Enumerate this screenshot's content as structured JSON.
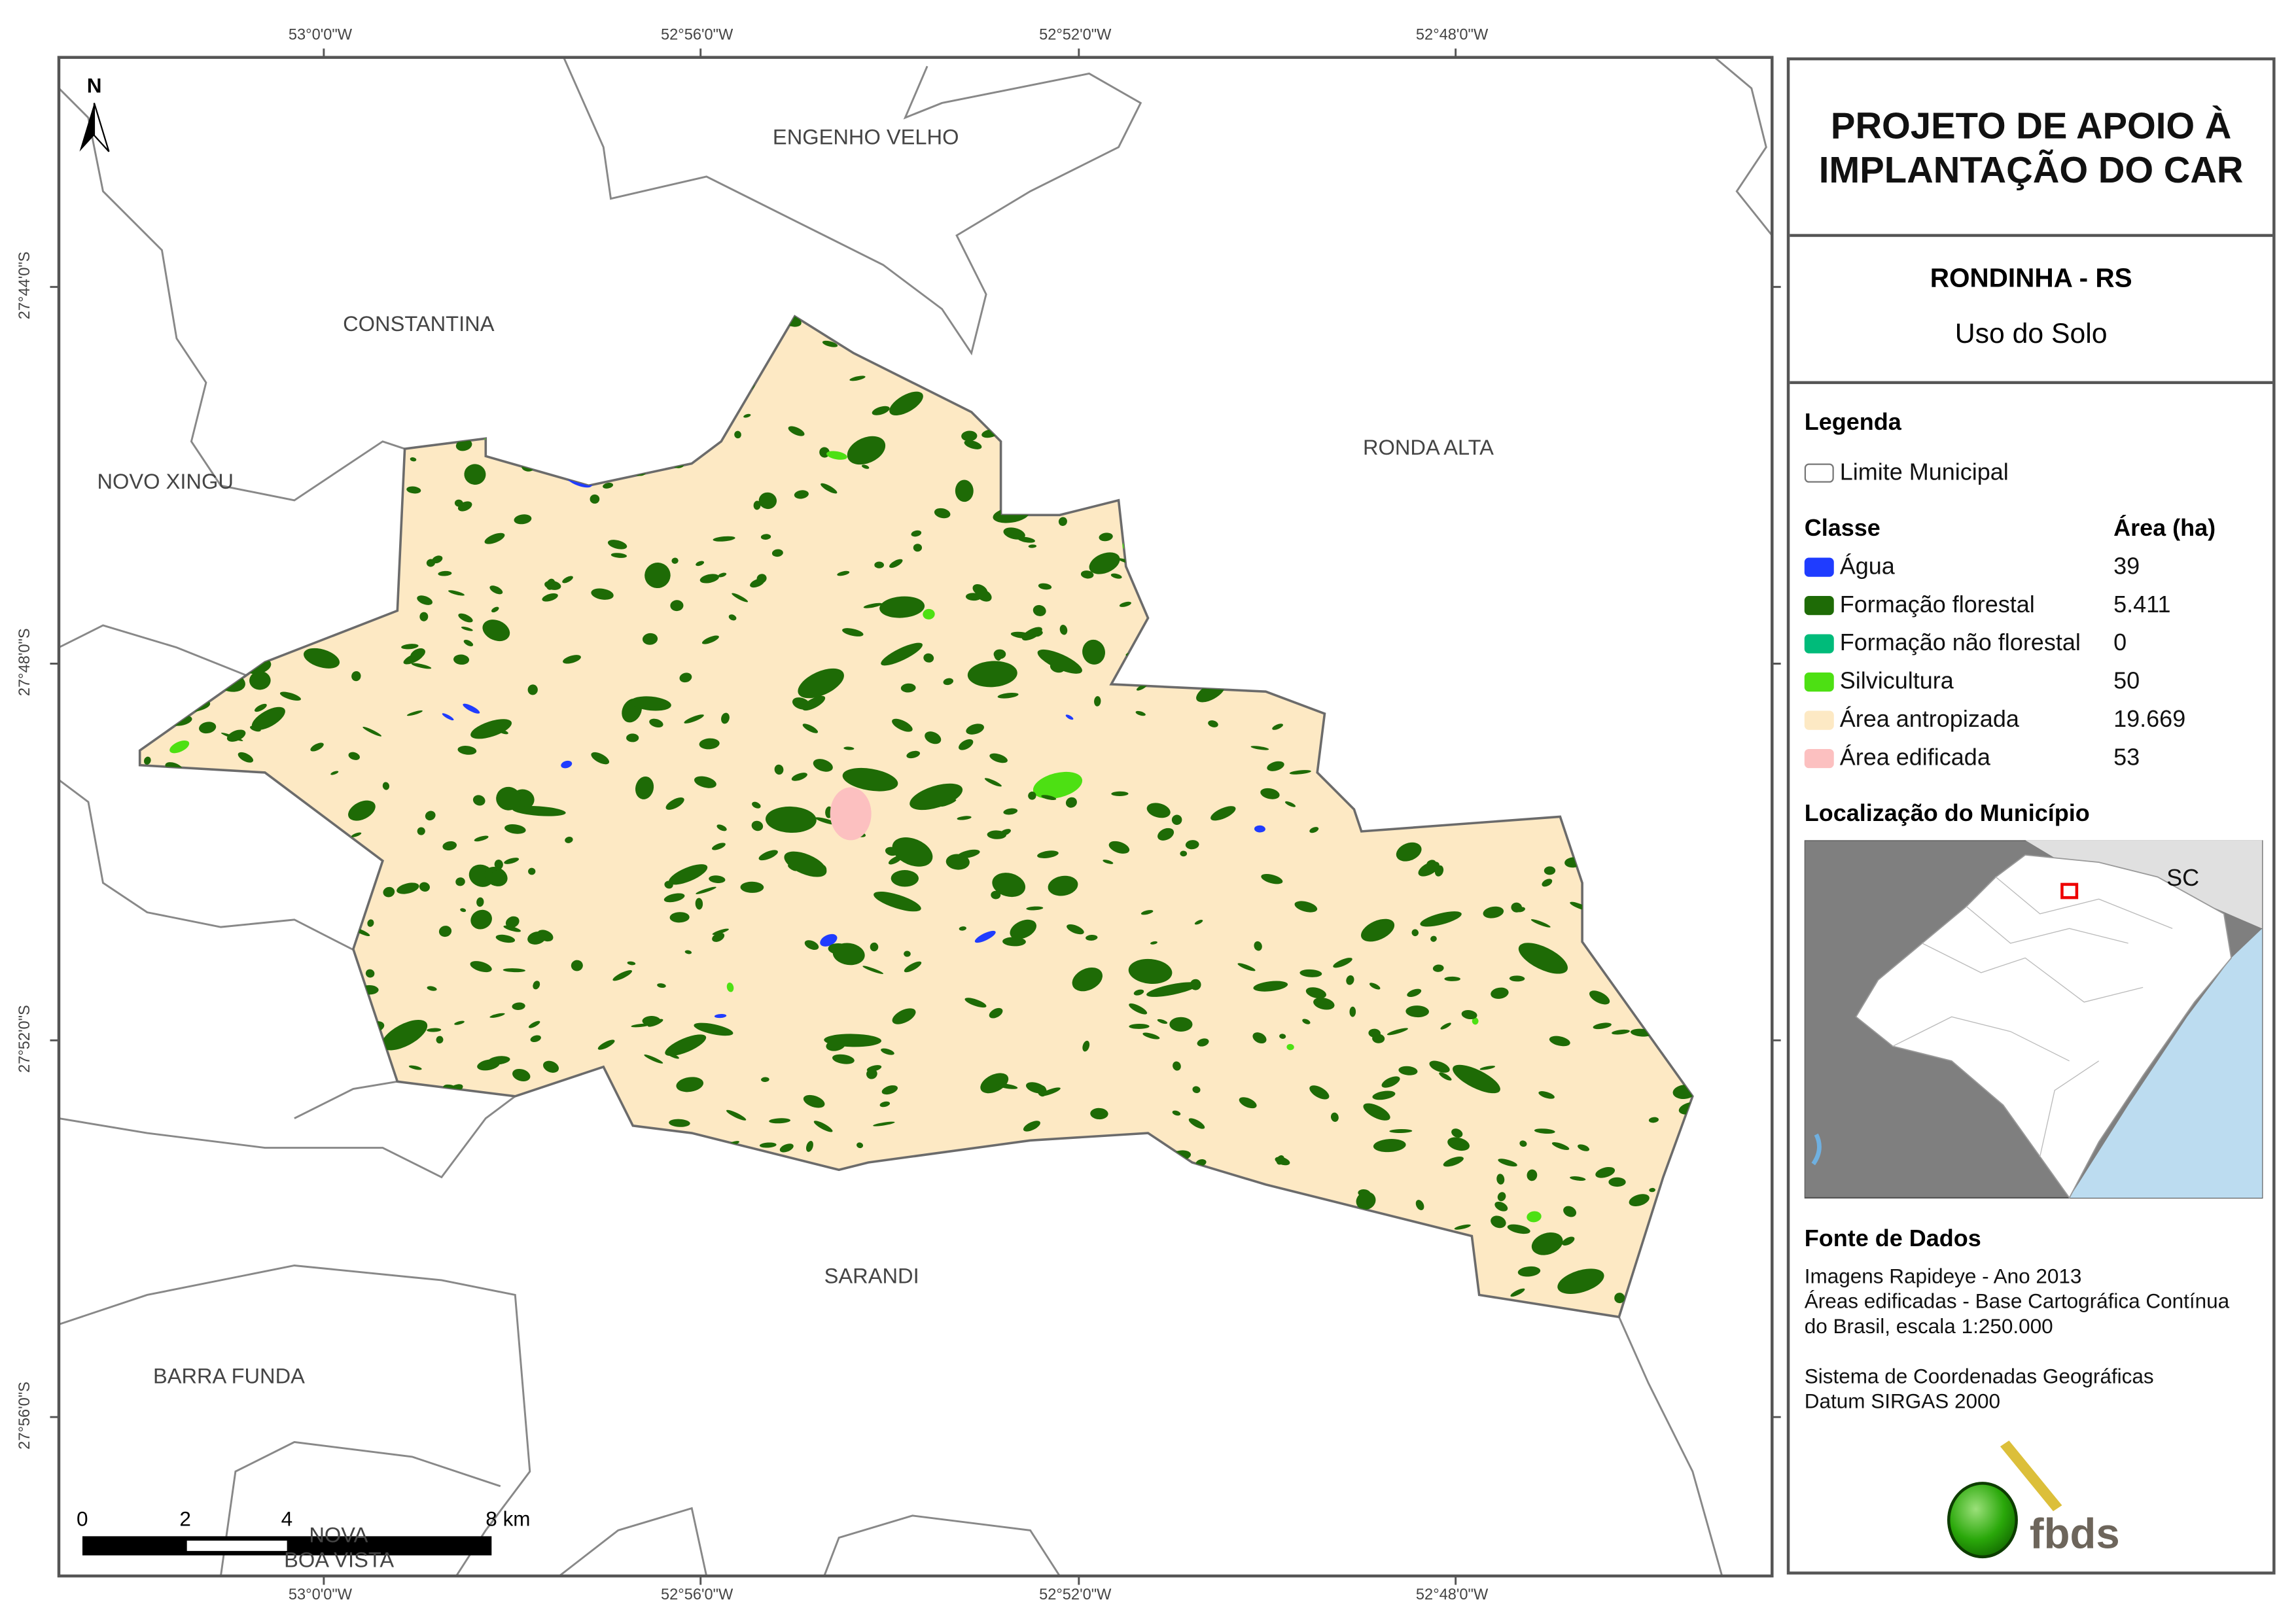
{
  "map": {
    "north_label": "N",
    "place_labels": [
      {
        "name": "ENGENHO VELHO"
      },
      {
        "name": "CONSTANTINA"
      },
      {
        "name": "RONDA ALTA"
      },
      {
        "name": "NOVO XINGU"
      },
      {
        "name": "SARANDI"
      },
      {
        "name": "BARRA FUNDA"
      },
      {
        "name": "NOVA"
      },
      {
        "name": "BOA VISTA"
      }
    ],
    "longitude_ticks": [
      "53°0'0\"W",
      "52°56'0\"W",
      "52°52'0\"W",
      "52°48'0\"W"
    ],
    "latitude_ticks": [
      "27°44'0\"S",
      "27°48'0\"S",
      "27°52'0\"S",
      "27°56'0\"S"
    ],
    "scale_bar": {
      "labels": [
        "0",
        "2",
        "4",
        "8 km"
      ]
    },
    "colors": {
      "boundary": "#777777",
      "frame": "#555555"
    }
  },
  "panel": {
    "title_line1": "PROJETO DE APOIO À",
    "title_line2": "IMPLANTAÇÃO DO CAR",
    "municipality": "RONDINHA - RS",
    "subtitle": "Uso do Solo",
    "legend_heading": "Legenda",
    "limit_label": "Limite Municipal",
    "class_heading": "Classe",
    "area_heading": "Área (ha)",
    "classes": [
      {
        "label": "Água",
        "area": "39",
        "color": "#1f3cff"
      },
      {
        "label": "Formação florestal",
        "area": "5.411",
        "color": "#1e6b06"
      },
      {
        "label": "Formação não florestal",
        "area": "0",
        "color": "#00bb7a"
      },
      {
        "label": "Silvicultura",
        "area": "50",
        "color": "#4de013"
      },
      {
        "label": "Área antropizada",
        "area": "19.669",
        "color": "#fde9c4"
      },
      {
        "label": "Área edificada",
        "area": "53",
        "color": "#fcc0c0"
      }
    ],
    "location_heading": "Localização do Município",
    "inset_label": "SC",
    "source_heading": "Fonte de Dados",
    "source_lines": [
      "Imagens Rapideye - Ano 2013",
      "Áreas edificadas - Base Cartográfica Contínua",
      "do Brasil, escala 1:250.000"
    ],
    "crs_lines": [
      "Sistema de Coordenadas Geográficas",
      "Datum SIRGAS 2000"
    ],
    "logo_text": "fbds"
  }
}
